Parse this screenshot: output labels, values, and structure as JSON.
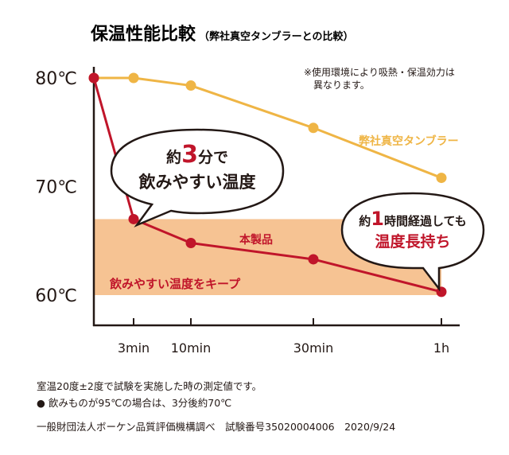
{
  "chart_data": {
    "type": "line",
    "title": "保温性能比較",
    "subtitle": "（弊社真空タンブラーとの比較）",
    "x_ticks": [
      "3min",
      "10min",
      "30min",
      "1h"
    ],
    "y_ticks": [
      "80℃",
      "70℃",
      "60℃"
    ],
    "ylim": [
      60,
      80
    ],
    "series": [
      {
        "name": "本製品",
        "color": "#c0152a",
        "points": [
          {
            "x_min": 0,
            "y": 80
          },
          {
            "x_min": 3,
            "y": 67
          },
          {
            "x_min": 10,
            "y": 64.8
          },
          {
            "x_min": 30,
            "y": 63.3
          },
          {
            "x_min": 60,
            "y": 60.3
          }
        ]
      },
      {
        "name": "弊社真空タンブラー",
        "color": "#efb545",
        "points": [
          {
            "x_min": 0,
            "y": 80
          },
          {
            "x_min": 3,
            "y": 80
          },
          {
            "x_min": 10,
            "y": 79.3
          },
          {
            "x_min": 30,
            "y": 75.4
          },
          {
            "x_min": 60,
            "y": 70.8
          }
        ]
      }
    ],
    "band": {
      "label": "飲みやすい温度をキープ",
      "y_from": 60,
      "y_to": 67,
      "color": "#f6c393"
    },
    "note_lines": [
      "※使用環境により吸熱・保温効力は",
      "異なります。"
    ],
    "bubble_left": {
      "pre": "約",
      "num": "3",
      "post": "分で",
      "line2": "飲みやすい温度"
    },
    "bubble_right": {
      "pre": "約",
      "num": "1",
      "post": "時間経過しても",
      "line2": "温度長持ち"
    },
    "footnotes": [
      "室温20度±2度で試験を実施した時の測定値です。",
      "● 飲みものが95℃の場合は、3分後約70℃",
      "一般財団法人ボーケン品質評価機構調べ　試験番号35020004006　2020/9/24"
    ],
    "colors": {
      "red": "#c0152a",
      "orange": "#efb545",
      "band": "#f6c393",
      "axis": "#231815"
    }
  }
}
